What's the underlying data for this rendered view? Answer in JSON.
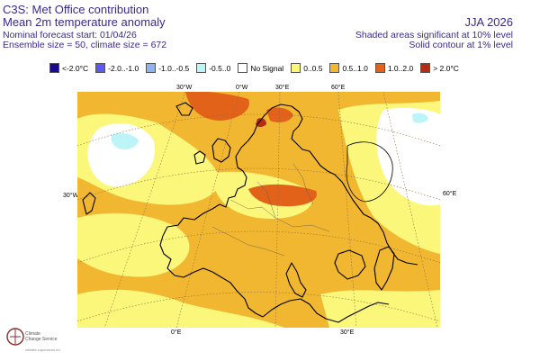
{
  "header": {
    "title": "C3S: Met Office contribution",
    "subtitle": "Mean 2m temperature anomaly",
    "forecast_start": "Nominal forecast start: 01/04/26",
    "ensemble": "Ensemble size = 50, climate size = 672",
    "season": "JJA 2026",
    "sig_shaded": "Shaded areas significant at 10% level",
    "sig_contour": "Solid contour at 1% level"
  },
  "legend": [
    {
      "label": "<-2.0°C",
      "color": "#1a0b8c"
    },
    {
      "label": "-2.0..-1.0",
      "color": "#5b5bf0"
    },
    {
      "label": "-1.0..-0.5",
      "color": "#8fb3f0"
    },
    {
      "label": "-0.5..0",
      "color": "#bdf4f8"
    },
    {
      "label": "No Signal",
      "color": "#ffffff"
    },
    {
      "label": "0..0.5",
      "color": "#fbf77a"
    },
    {
      "label": "0.5..1.0",
      "color": "#f2b731"
    },
    {
      "label": "1.0..2.0",
      "color": "#e2621a"
    },
    {
      "label": "> 2.0°C",
      "color": "#b42b17"
    }
  ],
  "axis_labels": {
    "lon_top": [
      "30°W",
      "0°W",
      "30°E",
      "60°E"
    ],
    "lat_left": "30°W",
    "lat_right": "60°E",
    "lon_bottom": [
      "0°E",
      "30°E"
    ]
  },
  "logo": {
    "name_line1": "Climate",
    "name_line2": "Change Service",
    "url": "climate.copernicus.eu"
  }
}
